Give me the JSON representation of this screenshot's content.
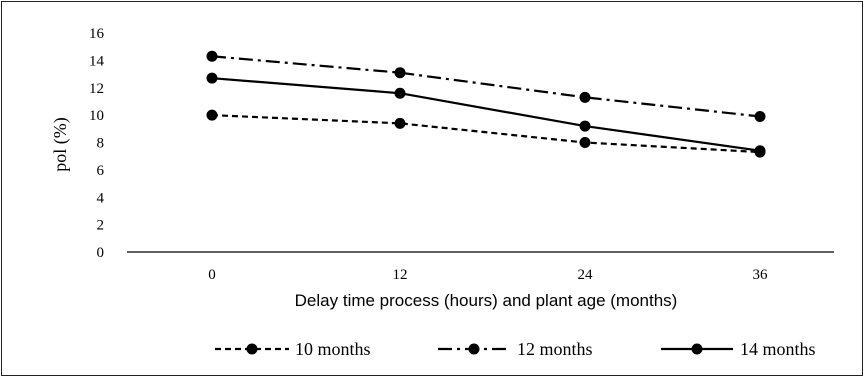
{
  "chart_data": {
    "type": "line",
    "title": "",
    "xlabel": "Delay time process (hours) and plant age (months)",
    "ylabel": "pol (%)",
    "x": [
      0,
      12,
      24,
      36
    ],
    "x_tick_labels": [
      "0",
      "12",
      "24",
      "36"
    ],
    "y_tick_labels": [
      "0",
      "2",
      "4",
      "6",
      "8",
      "10",
      "12",
      "14",
      "16"
    ],
    "ylim": [
      0,
      16
    ],
    "grid": false,
    "legend_position": "bottom",
    "series": [
      {
        "name": "10 months",
        "values": [
          10.0,
          9.4,
          8.0,
          7.3
        ],
        "dash": "dashed",
        "color": "#000000"
      },
      {
        "name": "12 months",
        "values": [
          14.3,
          13.1,
          11.3,
          9.9
        ],
        "dash": "dashdot",
        "color": "#000000"
      },
      {
        "name": "14 months",
        "values": [
          12.7,
          11.6,
          9.2,
          7.4
        ],
        "dash": "solid",
        "color": "#000000"
      }
    ]
  }
}
